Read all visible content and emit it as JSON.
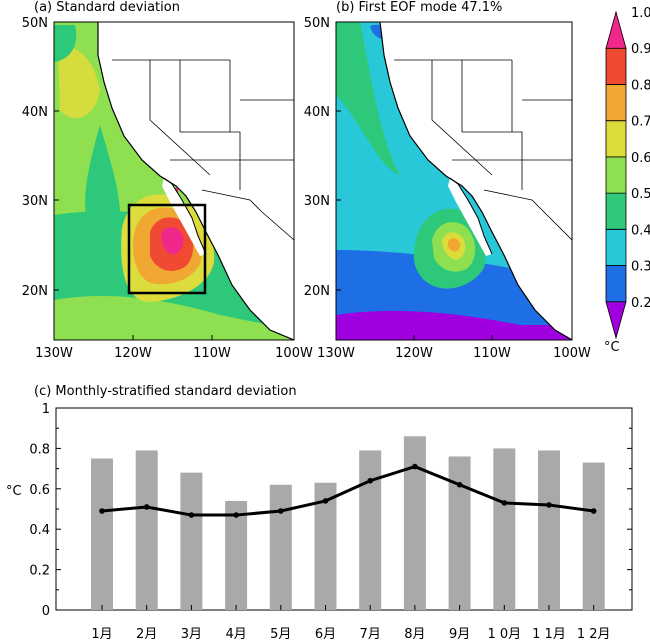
{
  "panels": {
    "a_title": "(a)  Standard deviation",
    "b_title": "(b)  First EOF mode  47.1%",
    "c_title": "(c) Monthly-stratified standard deviation"
  },
  "map_axes": {
    "lat_ticks": [
      "50N",
      "40N",
      "30N",
      "20N"
    ],
    "lon_ticks": [
      "130W",
      "120W",
      "110W",
      "100W"
    ]
  },
  "colorbar": {
    "levels": [
      "0.2",
      "0.3",
      "0.4",
      "0.5",
      "0.6",
      "0.7",
      "0.8",
      "0.9",
      "1.0"
    ],
    "colors": [
      "#a000e0",
      "#1e6ee6",
      "#28c8d8",
      "#2ec87a",
      "#8ee050",
      "#dcdc3c",
      "#f0a832",
      "#f04a32",
      "#f0288c"
    ],
    "unit": "°C"
  },
  "chart_data": {
    "type": "bar",
    "title": "(c) Monthly-stratified standard deviation",
    "ylabel": "°C",
    "ylim": [
      0,
      1
    ],
    "yticks": [
      "0",
      "0.2",
      "0.4",
      "0.6",
      "0.8",
      "1"
    ],
    "categories": [
      "1月",
      "2月",
      "3月",
      "4月",
      "5月",
      "6月",
      "7月",
      "8月",
      "9月",
      "1 0月",
      "1 1月",
      "1 2月"
    ],
    "series": [
      {
        "type": "bar",
        "color": "#a9a9a9",
        "values": [
          0.75,
          0.79,
          0.68,
          0.54,
          0.62,
          0.63,
          0.79,
          0.86,
          0.76,
          0.8,
          0.79,
          0.73
        ]
      },
      {
        "type": "line",
        "color": "#000000",
        "values": [
          0.49,
          0.51,
          0.47,
          0.47,
          0.49,
          0.54,
          0.64,
          0.71,
          0.62,
          0.53,
          0.52,
          0.49
        ]
      }
    ]
  }
}
